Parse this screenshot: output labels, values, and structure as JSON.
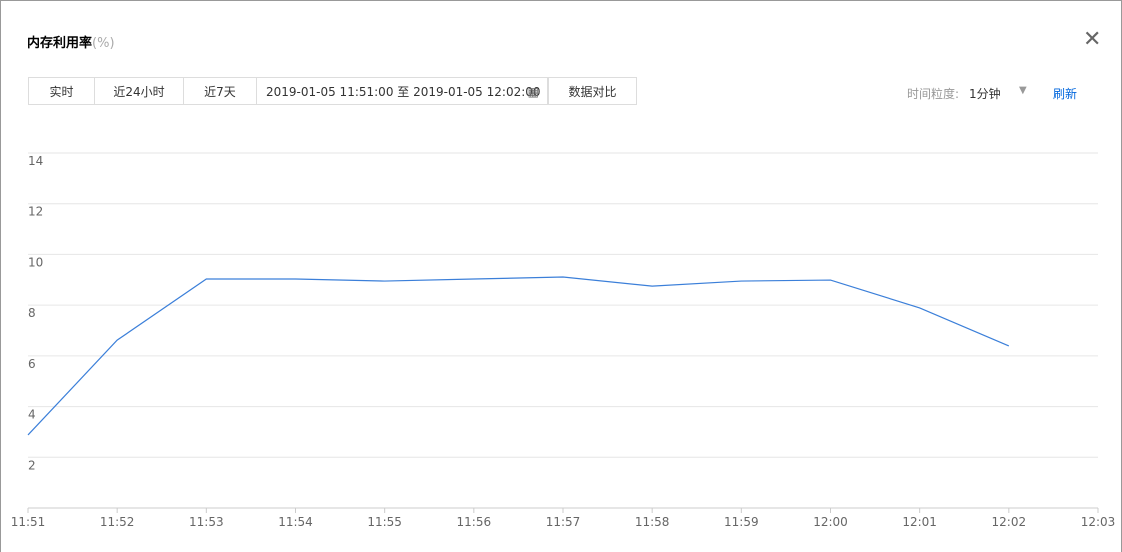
{
  "header": {
    "title": "内存利用率",
    "unit": "(%)"
  },
  "toolbar": {
    "tabs": [
      "实时",
      "近24小时",
      "近7天"
    ],
    "date_range": "2019-01-05 11:51:00 至 2019-01-05 12:02:00",
    "compare": "数据对比",
    "granularity_label": "时间粒度:",
    "granularity": "1分钟",
    "refresh": "刷新"
  },
  "chart_data": {
    "type": "line",
    "categories": [
      "11:51",
      "11:52",
      "11:53",
      "11:54",
      "11:55",
      "11:56",
      "11:57",
      "11:58",
      "11:59",
      "12:00",
      "12:01",
      "12:02",
      "12:03"
    ],
    "values": [
      2.88,
      6.62,
      9.03,
      9.03,
      8.95,
      9.03,
      9.11,
      8.75,
      8.95,
      8.99,
      7.89,
      6.39,
      null
    ],
    "color": "#3b7fd9",
    "ylim": [
      0,
      14
    ],
    "yticks": [
      2,
      4,
      6,
      8,
      10,
      12,
      14
    ],
    "grid": true
  }
}
